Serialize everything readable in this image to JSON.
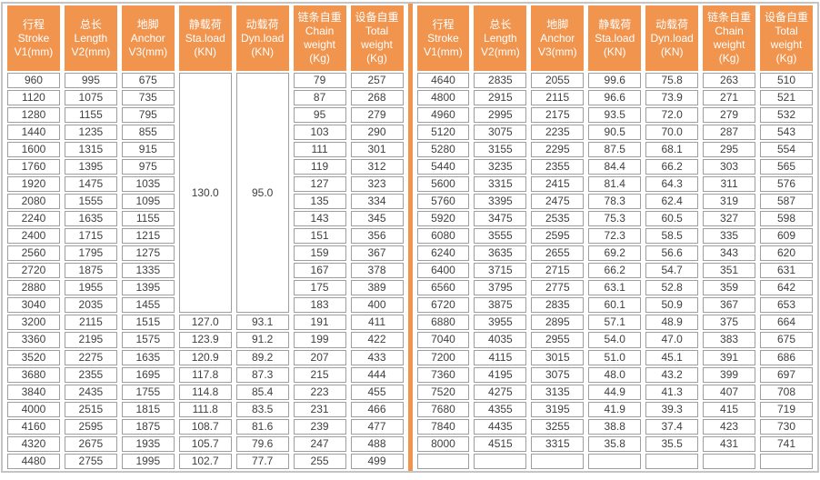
{
  "colors": {
    "accent": "#F0944E",
    "cell_border": "#9E9E9E",
    "outer_border": "#C4C4C4",
    "text": "#3F3F3F"
  },
  "columns": [
    {
      "lines": [
        "行程",
        "Stroke",
        "V1(mm)"
      ]
    },
    {
      "lines": [
        "总长",
        "Length",
        "V2(mm)"
      ]
    },
    {
      "lines": [
        "地脚",
        "Anchor",
        "V3(mm)"
      ]
    },
    {
      "lines": [
        "静载荷",
        "Sta.load",
        "(KN)"
      ]
    },
    {
      "lines": [
        "动载荷",
        "Dyn.load",
        "(KN)"
      ]
    },
    {
      "lines": [
        "链条自重",
        "Chain",
        "weight",
        "(Kg)"
      ]
    },
    {
      "lines": [
        "设备自重",
        "Total",
        "weight",
        "(Kg)"
      ]
    }
  ],
  "left_table": {
    "rows": [
      [
        "960",
        "995",
        "675",
        {
          "text": "130.0",
          "rowspan": 14
        },
        {
          "text": "95.0",
          "rowspan": 14
        },
        "79",
        "257"
      ],
      [
        "1120",
        "1075",
        "735",
        "87",
        "268"
      ],
      [
        "1280",
        "1155",
        "795",
        "95",
        "279"
      ],
      [
        "1440",
        "1235",
        "855",
        "103",
        "290"
      ],
      [
        "1600",
        "1315",
        "915",
        "111",
        "301"
      ],
      [
        "1760",
        "1395",
        "975",
        "119",
        "312"
      ],
      [
        "1920",
        "1475",
        "1035",
        "127",
        "323"
      ],
      [
        "2080",
        "1555",
        "1095",
        "135",
        "334"
      ],
      [
        "2240",
        "1635",
        "1155",
        "143",
        "345"
      ],
      [
        "2400",
        "1715",
        "1215",
        "151",
        "356"
      ],
      [
        "2560",
        "1795",
        "1275",
        "159",
        "367"
      ],
      [
        "2720",
        "1875",
        "1335",
        "167",
        "378"
      ],
      [
        "2880",
        "1955",
        "1395",
        "175",
        "389"
      ],
      [
        "3040",
        "2035",
        "1455",
        "183",
        "400"
      ],
      [
        "3200",
        "2115",
        "1515",
        "127.0",
        "93.1",
        "191",
        "411"
      ],
      [
        "3360",
        "2195",
        "1575",
        "123.9",
        "91.2",
        "199",
        "422"
      ],
      [
        "3520",
        "2275",
        "1635",
        "120.9",
        "89.2",
        "207",
        "433"
      ],
      [
        "3680",
        "2355",
        "1695",
        "117.8",
        "87.3",
        "215",
        "444"
      ],
      [
        "3840",
        "2435",
        "1755",
        "114.8",
        "85.4",
        "223",
        "455"
      ],
      [
        "4000",
        "2515",
        "1815",
        "111.8",
        "83.5",
        "231",
        "466"
      ],
      [
        "4160",
        "2595",
        "1875",
        "108.7",
        "81.6",
        "239",
        "477"
      ],
      [
        "4320",
        "2675",
        "1935",
        "105.7",
        "79.6",
        "247",
        "488"
      ],
      [
        "4480",
        "2755",
        "1995",
        "102.7",
        "77.7",
        "255",
        "499"
      ]
    ]
  },
  "right_table": {
    "rows": [
      [
        "4640",
        "2835",
        "2055",
        "99.6",
        "75.8",
        "263",
        "510"
      ],
      [
        "4800",
        "2915",
        "2115",
        "96.6",
        "73.9",
        "271",
        "521"
      ],
      [
        "4960",
        "2995",
        "2175",
        "93.5",
        "72.0",
        "279",
        "532"
      ],
      [
        "5120",
        "3075",
        "2235",
        "90.5",
        "70.0",
        "287",
        "543"
      ],
      [
        "5280",
        "3155",
        "2295",
        "87.5",
        "68.1",
        "295",
        "554"
      ],
      [
        "5440",
        "3235",
        "2355",
        "84.4",
        "66.2",
        "303",
        "565"
      ],
      [
        "5600",
        "3315",
        "2415",
        "81.4",
        "64.3",
        "311",
        "576"
      ],
      [
        "5760",
        "3395",
        "2475",
        "78.3",
        "62.4",
        "319",
        "587"
      ],
      [
        "5920",
        "3475",
        "2535",
        "75.3",
        "60.5",
        "327",
        "598"
      ],
      [
        "6080",
        "3555",
        "2595",
        "72.3",
        "58.5",
        "335",
        "609"
      ],
      [
        "6240",
        "3635",
        "2655",
        "69.2",
        "56.6",
        "343",
        "620"
      ],
      [
        "6400",
        "3715",
        "2715",
        "66.2",
        "54.7",
        "351",
        "631"
      ],
      [
        "6560",
        "3795",
        "2775",
        "63.1",
        "52.8",
        "359",
        "642"
      ],
      [
        "6720",
        "3875",
        "2835",
        "60.1",
        "50.9",
        "367",
        "653"
      ],
      [
        "6880",
        "3955",
        "2895",
        "57.1",
        "48.9",
        "375",
        "664"
      ],
      [
        "7040",
        "4035",
        "2955",
        "54.0",
        "47.0",
        "383",
        "675"
      ],
      [
        "7200",
        "4115",
        "3015",
        "51.0",
        "45.1",
        "391",
        "686"
      ],
      [
        "7360",
        "4195",
        "3075",
        "48.0",
        "43.2",
        "399",
        "697"
      ],
      [
        "7520",
        "4275",
        "3135",
        "44.9",
        "41.3",
        "407",
        "708"
      ],
      [
        "7680",
        "4355",
        "3195",
        "41.9",
        "39.3",
        "415",
        "719"
      ],
      [
        "7840",
        "4435",
        "3255",
        "38.8",
        "37.4",
        "423",
        "730"
      ],
      [
        "8000",
        "4515",
        "3315",
        "35.8",
        "35.5",
        "431",
        "741"
      ],
      [
        "",
        "",
        "",
        "",
        "",
        "",
        ""
      ]
    ]
  }
}
